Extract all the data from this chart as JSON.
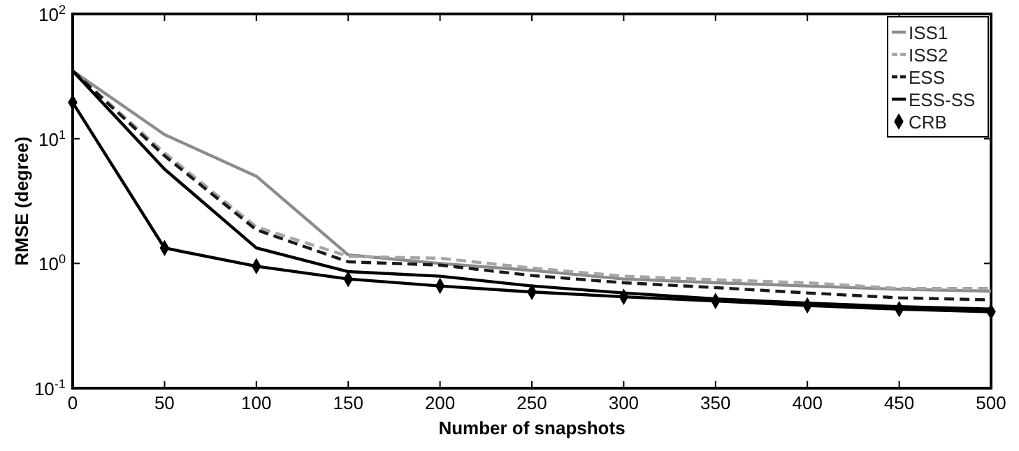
{
  "chart_data": {
    "type": "line",
    "xlabel": "Number of snapshots",
    "ylabel": "RMSE (degree)",
    "x": [
      0,
      50,
      100,
      150,
      200,
      250,
      300,
      350,
      400,
      450,
      500
    ],
    "series": [
      {
        "name": "ISS1",
        "color": "#8c8c8c",
        "line_style": "solid",
        "marker": "none",
        "values": [
          35,
          10.8,
          5,
          1.17,
          1.0,
          0.88,
          0.75,
          0.7,
          0.66,
          0.62,
          0.6
        ]
      },
      {
        "name": "ISS2",
        "color": "#a6a6a6",
        "line_style": "dashed",
        "marker": "none",
        "values": [
          35,
          7.7,
          1.96,
          1.14,
          1.1,
          0.92,
          0.79,
          0.74,
          0.7,
          0.63,
          0.63
        ]
      },
      {
        "name": "ESS",
        "color": "#1a1a1a",
        "line_style": "dashed",
        "marker": "none",
        "values": [
          35,
          7.3,
          1.86,
          1.03,
          0.97,
          0.8,
          0.7,
          0.64,
          0.58,
          0.53,
          0.51
        ]
      },
      {
        "name": "ESS-SS",
        "color": "#000000",
        "line_style": "solid",
        "marker": "none",
        "values": [
          35,
          5.7,
          1.33,
          0.86,
          0.79,
          0.66,
          0.58,
          0.52,
          0.48,
          0.45,
          0.43
        ]
      },
      {
        "name": "CRB",
        "color": "#000000",
        "line_style": "solid",
        "marker": "diamond",
        "values": [
          19.5,
          1.33,
          0.95,
          0.75,
          0.66,
          0.59,
          0.54,
          0.5,
          0.46,
          0.43,
          0.41
        ]
      }
    ],
    "log": true,
    "xlim": [
      0,
      500
    ],
    "ylim": [
      0.1,
      100
    ],
    "xticks": [
      0,
      50,
      100,
      150,
      200,
      250,
      300,
      350,
      400,
      450,
      500
    ],
    "yticks": [
      {
        "value": 0.1,
        "label": "10$^{-1}$"
      },
      {
        "value": 1,
        "label": "10$^{0}$"
      },
      {
        "value": 10,
        "label": "10$^{1}$"
      },
      {
        "value": 100,
        "label": "10$^{2}$"
      }
    ],
    "grid": false,
    "legend": "top right"
  }
}
